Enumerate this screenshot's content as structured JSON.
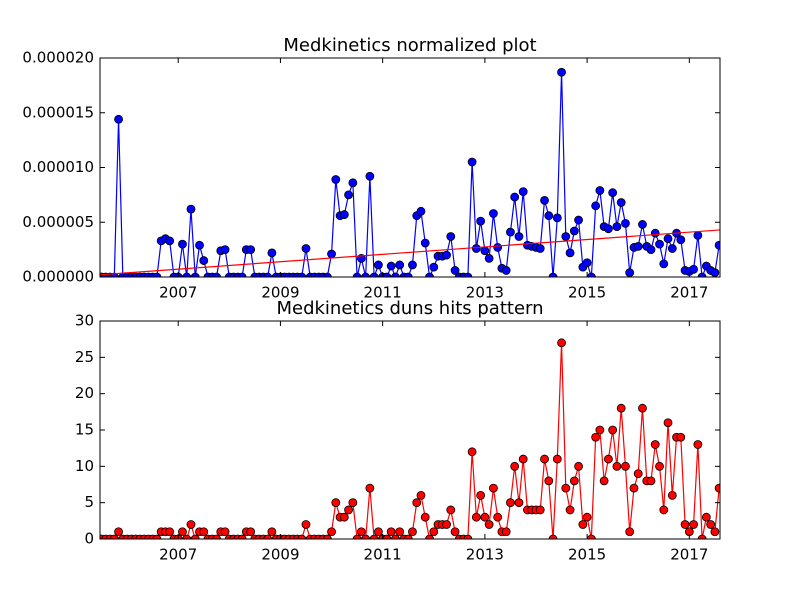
{
  "chart_data": [
    {
      "type": "line",
      "title": "Medkinetics normalized plot",
      "x": [
        2005.5,
        2005.583,
        2005.667,
        2005.75,
        2005.833,
        2005.917,
        2006,
        2006.083,
        2006.167,
        2006.25,
        2006.333,
        2006.417,
        2006.5,
        2006.583,
        2006.667,
        2006.75,
        2006.833,
        2006.917,
        2007,
        2007.083,
        2007.167,
        2007.25,
        2007.333,
        2007.417,
        2007.5,
        2007.583,
        2007.667,
        2007.75,
        2007.833,
        2007.917,
        2008,
        2008.083,
        2008.167,
        2008.25,
        2008.333,
        2008.417,
        2008.5,
        2008.583,
        2008.667,
        2008.75,
        2008.833,
        2008.917,
        2009,
        2009.083,
        2009.167,
        2009.25,
        2009.333,
        2009.417,
        2009.5,
        2009.583,
        2009.667,
        2009.75,
        2009.833,
        2009.917,
        2010,
        2010.083,
        2010.167,
        2010.25,
        2010.333,
        2010.417,
        2010.5,
        2010.583,
        2010.667,
        2010.75,
        2010.833,
        2010.917,
        2011,
        2011.083,
        2011.167,
        2011.25,
        2011.333,
        2011.417,
        2011.5,
        2011.583,
        2011.667,
        2011.75,
        2011.833,
        2011.917,
        2012,
        2012.083,
        2012.167,
        2012.25,
        2012.333,
        2012.417,
        2012.5,
        2012.583,
        2012.667,
        2012.75,
        2012.833,
        2012.917,
        2013,
        2013.083,
        2013.167,
        2013.25,
        2013.333,
        2013.417,
        2013.5,
        2013.583,
        2013.667,
        2013.75,
        2013.833,
        2013.917,
        2014,
        2014.083,
        2014.167,
        2014.25,
        2014.333,
        2014.417,
        2014.5,
        2014.583,
        2014.667,
        2014.75,
        2014.833,
        2014.917,
        2015,
        2015.083,
        2015.167,
        2015.25,
        2015.333,
        2015.417,
        2015.5,
        2015.583,
        2015.667,
        2015.75,
        2015.833,
        2015.917,
        2016,
        2016.083,
        2016.167,
        2016.25,
        2016.333,
        2016.417,
        2016.5,
        2016.583,
        2016.667,
        2016.75,
        2016.833,
        2016.917,
        2017,
        2017.083,
        2017.167,
        2017.25,
        2017.333,
        2017.417,
        2017.5,
        2017.583
      ],
      "series": [
        {
          "color": "#0000ff",
          "marker": true,
          "values": [
            0,
            0,
            0,
            0,
            1.44e-05,
            0,
            0,
            0,
            0,
            0,
            0,
            0,
            0,
            0,
            3.3e-06,
            3.5e-06,
            3.3e-06,
            0,
            0,
            3e-06,
            0,
            6.2e-06,
            0,
            2.9e-06,
            1.5e-06,
            0,
            0,
            0,
            2.4e-06,
            2.5e-06,
            0,
            0,
            0,
            0,
            2.5e-06,
            2.5e-06,
            0,
            0,
            0,
            0,
            2.2e-06,
            0,
            0,
            0,
            0,
            0,
            0,
            0,
            2.6e-06,
            0,
            0,
            0,
            0,
            0,
            2.1e-06,
            8.9e-06,
            5.6e-06,
            5.7e-06,
            7.5e-06,
            8.6e-06,
            0,
            1.7e-06,
            0,
            9.2e-06,
            0,
            1.1e-06,
            0,
            0,
            1e-06,
            0,
            1.1e-06,
            0,
            0,
            1.1e-06,
            5.6e-06,
            6e-06,
            3.1e-06,
            0,
            9e-07,
            1.9e-06,
            1.9e-06,
            2e-06,
            3.7e-06,
            6e-07,
            0,
            0,
            0,
            1.05e-05,
            2.6e-06,
            5.1e-06,
            2.4e-06,
            1.7e-06,
            5.8e-06,
            2.7e-06,
            8e-07,
            6e-07,
            4.1e-06,
            7.3e-06,
            3.7e-06,
            7.8e-06,
            2.9e-06,
            2.8e-06,
            2.7e-06,
            2.6e-06,
            7e-06,
            5.6e-06,
            0,
            5.4e-06,
            1.87e-05,
            3.7e-06,
            2.2e-06,
            4.2e-06,
            5.2e-06,
            9e-07,
            1.3e-06,
            0,
            6.5e-06,
            7.9e-06,
            4.6e-06,
            4.4e-06,
            7.7e-06,
            4.6e-06,
            6.8e-06,
            4.9e-06,
            4e-07,
            2.7e-06,
            2.8e-06,
            4.8e-06,
            2.8e-06,
            2.5e-06,
            4e-06,
            3e-06,
            1.2e-06,
            3.5e-06,
            2.6e-06,
            4e-06,
            3.4e-06,
            6e-07,
            5e-07,
            7e-07,
            3.8e-06,
            0,
            1e-06,
            6e-07,
            4e-07,
            2.9e-06
          ]
        },
        {
          "color": "#ff0000",
          "marker": false,
          "x": [
            2005.47,
            2017.6
          ],
          "values": [
            2e-07,
            4.3e-06
          ]
        }
      ],
      "xlim": [
        2005.47,
        2017.6
      ],
      "xticks": [
        2007,
        2009,
        2011,
        2013,
        2015,
        2017
      ],
      "ylim": [
        0,
        2e-05
      ],
      "yticks": [
        {
          "value": 0,
          "label": "0.000000"
        },
        {
          "value": 5e-06,
          "label": "0.000005"
        },
        {
          "value": 1e-05,
          "label": "0.000010"
        },
        {
          "value": 1.5e-05,
          "label": "0.000015"
        },
        {
          "value": 2e-05,
          "label": "0.000020"
        }
      ],
      "grid": false
    },
    {
      "type": "line",
      "title": "Medkinetics duns hits pattern",
      "x": [
        2005.5,
        2005.583,
        2005.667,
        2005.75,
        2005.833,
        2005.917,
        2006,
        2006.083,
        2006.167,
        2006.25,
        2006.333,
        2006.417,
        2006.5,
        2006.583,
        2006.667,
        2006.75,
        2006.833,
        2006.917,
        2007,
        2007.083,
        2007.167,
        2007.25,
        2007.333,
        2007.417,
        2007.5,
        2007.583,
        2007.667,
        2007.75,
        2007.833,
        2007.917,
        2008,
        2008.083,
        2008.167,
        2008.25,
        2008.333,
        2008.417,
        2008.5,
        2008.583,
        2008.667,
        2008.75,
        2008.833,
        2008.917,
        2009,
        2009.083,
        2009.167,
        2009.25,
        2009.333,
        2009.417,
        2009.5,
        2009.583,
        2009.667,
        2009.75,
        2009.833,
        2009.917,
        2010,
        2010.083,
        2010.167,
        2010.25,
        2010.333,
        2010.417,
        2010.5,
        2010.583,
        2010.667,
        2010.75,
        2010.833,
        2010.917,
        2011,
        2011.083,
        2011.167,
        2011.25,
        2011.333,
        2011.417,
        2011.5,
        2011.583,
        2011.667,
        2011.75,
        2011.833,
        2011.917,
        2012,
        2012.083,
        2012.167,
        2012.25,
        2012.333,
        2012.417,
        2012.5,
        2012.583,
        2012.667,
        2012.75,
        2012.833,
        2012.917,
        2013,
        2013.083,
        2013.167,
        2013.25,
        2013.333,
        2013.417,
        2013.5,
        2013.583,
        2013.667,
        2013.75,
        2013.833,
        2013.917,
        2014,
        2014.083,
        2014.167,
        2014.25,
        2014.333,
        2014.417,
        2014.5,
        2014.583,
        2014.667,
        2014.75,
        2014.833,
        2014.917,
        2015,
        2015.083,
        2015.167,
        2015.25,
        2015.333,
        2015.417,
        2015.5,
        2015.583,
        2015.667,
        2015.75,
        2015.833,
        2015.917,
        2016,
        2016.083,
        2016.167,
        2016.25,
        2016.333,
        2016.417,
        2016.5,
        2016.583,
        2016.667,
        2016.75,
        2016.833,
        2016.917,
        2017,
        2017.083,
        2017.167,
        2017.25,
        2017.333,
        2017.417,
        2017.5,
        2017.583
      ],
      "series": [
        {
          "color": "#ff0000",
          "marker": true,
          "values": [
            0,
            0,
            0,
            0,
            1,
            0,
            0,
            0,
            0,
            0,
            0,
            0,
            0,
            0,
            1,
            1,
            1,
            0,
            0,
            1,
            0,
            2,
            0,
            1,
            1,
            0,
            0,
            0,
            1,
            1,
            0,
            0,
            0,
            0,
            1,
            1,
            0,
            0,
            0,
            0,
            1,
            0,
            0,
            0,
            0,
            0,
            0,
            0,
            2,
            0,
            0,
            0,
            0,
            0,
            1,
            5,
            3,
            3,
            4,
            5,
            0,
            1,
            0,
            7,
            0,
            1,
            0,
            0,
            1,
            0,
            1,
            0,
            0,
            1,
            5,
            6,
            3,
            0,
            1,
            2,
            2,
            2,
            4,
            1,
            0,
            0,
            0,
            12,
            3,
            6,
            3,
            2,
            7,
            3,
            1,
            1,
            5,
            10,
            5,
            11,
            4,
            4,
            4,
            4,
            11,
            8,
            0,
            11,
            27,
            7,
            4,
            8,
            10,
            2,
            3,
            0,
            14,
            15,
            8,
            11,
            15,
            10,
            18,
            10,
            1,
            7,
            9,
            18,
            8,
            8,
            13,
            10,
            4,
            16,
            6,
            14,
            14,
            2,
            1,
            2,
            13,
            0,
            3,
            2,
            1,
            7
          ]
        }
      ],
      "xlim": [
        2005.47,
        2017.6
      ],
      "xticks": [
        2007,
        2009,
        2011,
        2013,
        2015,
        2017
      ],
      "ylim": [
        0,
        30
      ],
      "yticks": [
        0,
        5,
        10,
        15,
        20,
        25,
        30
      ],
      "grid": false
    }
  ]
}
